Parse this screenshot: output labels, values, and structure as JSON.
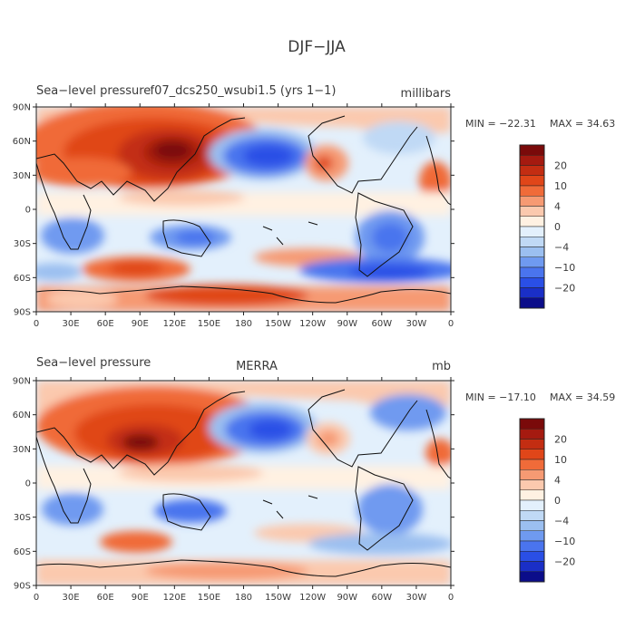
{
  "page": {
    "title": "DJF−JJA"
  },
  "axes": {
    "lat_labels": [
      "90N",
      "60N",
      "30N",
      "0",
      "30S",
      "60S",
      "90S"
    ],
    "lon_labels": [
      "0",
      "30E",
      "60E",
      "90E",
      "120E",
      "150E",
      "180",
      "150W",
      "120W",
      "90W",
      "60W",
      "30W",
      "0"
    ]
  },
  "colorbar": {
    "tick_labels": [
      "20",
      "10",
      "4",
      "0",
      "−4",
      "−10",
      "−20"
    ],
    "colors": [
      "#7a0a0a",
      "#a51a10",
      "#c32d12",
      "#e04619",
      "#f06b39",
      "#f69a73",
      "#fbc9ae",
      "#fff1e2",
      "#e3f0fc",
      "#c0d9f5",
      "#9bbff0",
      "#6f9af0",
      "#4a74ee",
      "#2a4fe6",
      "#1a2fc7",
      "#0b0d8a"
    ]
  },
  "panels": [
    {
      "id": "model",
      "left_title": "Sea−level pressure",
      "center_title": "f07_dcs250_wsubi1.5 (yrs 1−1)",
      "units": "millibars",
      "min_label": "MIN = −22.31",
      "max_label": "MAX =  34.63",
      "min": -22.31,
      "max": 34.63
    },
    {
      "id": "obs",
      "left_title": "Sea−level pressure",
      "center_title": "MERRA",
      "units": "mb",
      "min_label": "MIN = −17.10",
      "max_label": "MAX =  34.59",
      "min": -17.1,
      "max": 34.59
    }
  ]
}
